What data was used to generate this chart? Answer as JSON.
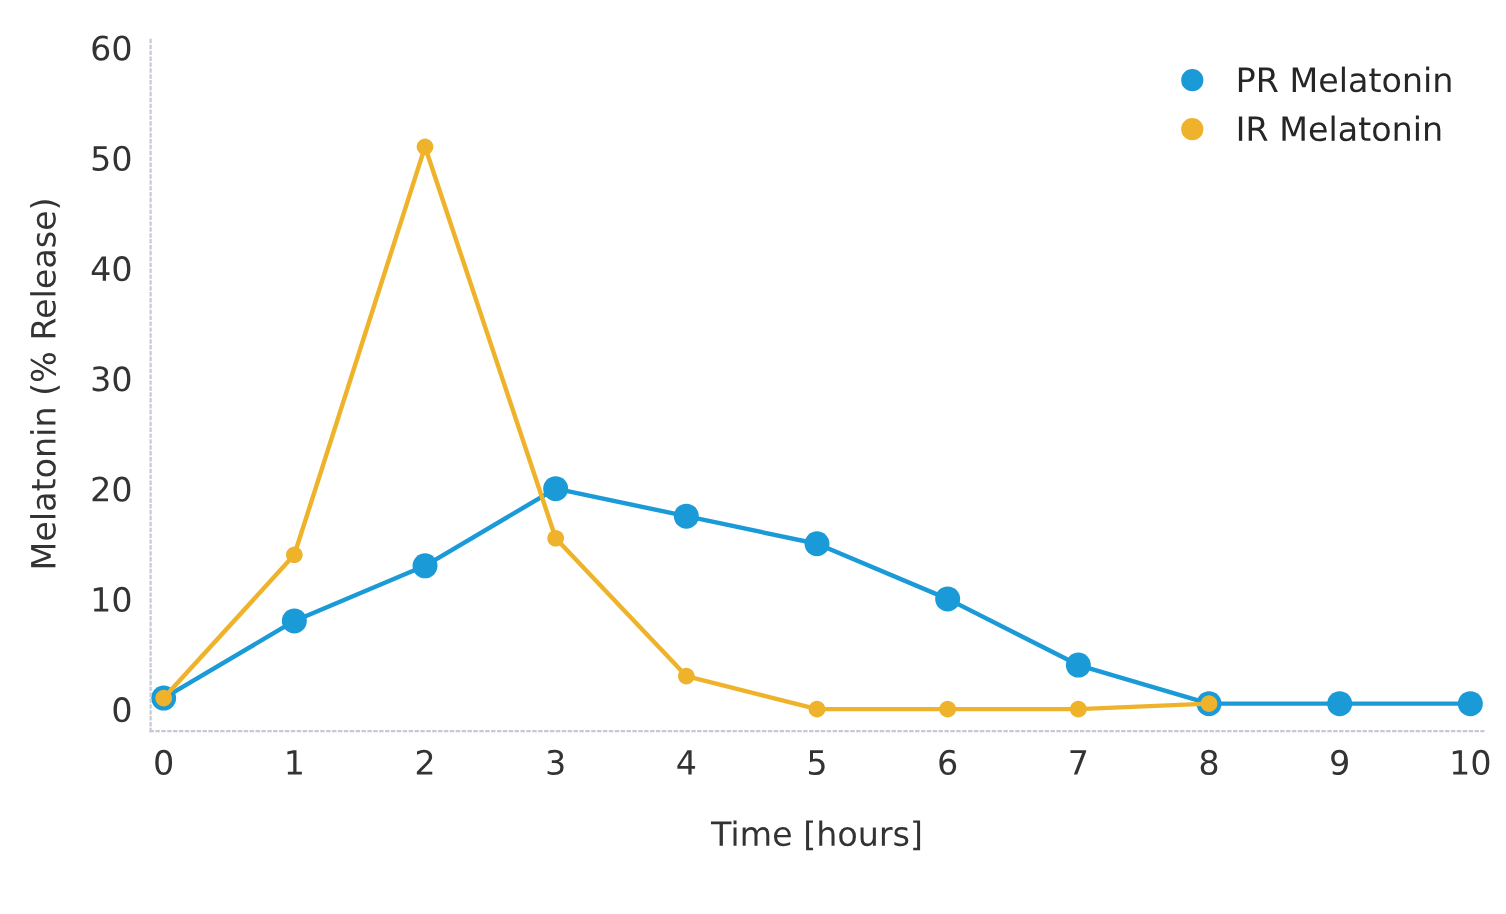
{
  "chart_data": {
    "type": "line",
    "xlabel": "Time [hours]",
    "ylabel": "Melatonin (% Release)",
    "x": [
      0,
      1,
      2,
      3,
      4,
      5,
      6,
      7,
      8,
      9,
      10
    ],
    "series": [
      {
        "name": "PR Melatonin",
        "color": "#1a9ad6",
        "values": [
          1,
          8,
          13,
          20,
          17.5,
          15,
          10,
          4,
          0.5,
          0.5,
          0.5
        ]
      },
      {
        "name": "IR Melatonin",
        "color": "#eeb32b",
        "x": [
          0,
          1,
          2,
          3,
          4,
          5,
          6,
          7,
          8
        ],
        "values": [
          1,
          14,
          51,
          15.5,
          3,
          0,
          0,
          0,
          0.5
        ]
      }
    ],
    "xlim": [
      -0.1,
      10.1
    ],
    "ylim": [
      -2,
      61
    ],
    "xticks": [
      0,
      1,
      2,
      3,
      4,
      5,
      6,
      7,
      8,
      9,
      10
    ],
    "yticks": [
      0,
      10,
      20,
      30,
      40,
      50,
      60
    ],
    "marker": "circle",
    "line_style": "solid",
    "legend": "top right",
    "grid": false
  }
}
